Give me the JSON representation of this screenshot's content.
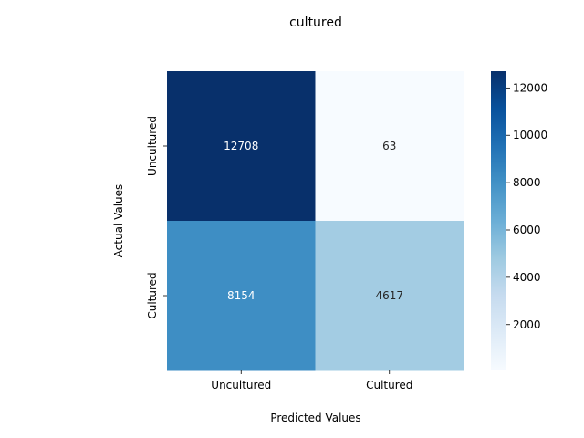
{
  "chart_data": {
    "type": "heatmap",
    "title": "cultured",
    "xlabel": "Predicted Values",
    "ylabel": "Actual Values",
    "x_categories": [
      "Uncultured",
      "Cultured"
    ],
    "y_categories": [
      "Uncultured",
      "Cultured"
    ],
    "values": [
      [
        12708,
        63
      ],
      [
        8154,
        4617
      ]
    ],
    "colormap": "Blues",
    "colorbar": {
      "range": [
        63,
        12708
      ],
      "ticks": [
        "2000",
        "4000",
        "6000",
        "8000",
        "10000",
        "12000"
      ]
    },
    "grid": false,
    "legend": "colorbar-right"
  }
}
